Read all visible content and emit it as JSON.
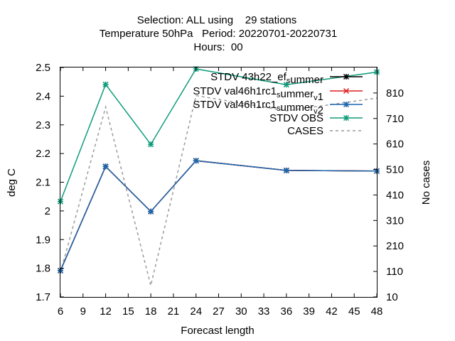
{
  "chart_data": {
    "type": "line",
    "title_lines": [
      "Selection: ALL using    29 stations",
      "Temperature 50hPa   Period: 20220701-20220731",
      "Hours:  00"
    ],
    "xlabel": "Forecast length",
    "ylabel": "deg C",
    "y2label": "No cases",
    "xlim": [
      6,
      48
    ],
    "ylim": [
      1.7,
      2.5
    ],
    "y2lim": [
      10,
      910
    ],
    "x_ticks": [
      6,
      9,
      12,
      15,
      18,
      21,
      24,
      27,
      30,
      33,
      36,
      39,
      42,
      45,
      48
    ],
    "y_ticks": [
      1.7,
      1.8,
      1.9,
      2,
      2.1,
      2.2,
      2.3,
      2.4,
      2.5
    ],
    "y_tick_labels": [
      "1.7",
      "1.8",
      "1.9",
      "2",
      "2.1",
      "2.2",
      "2.3",
      "2.4",
      "2.5"
    ],
    "y2_ticks": [
      10,
      110,
      210,
      310,
      410,
      510,
      610,
      710,
      810
    ],
    "y2_tick_labels": [
      "10",
      "110",
      "210",
      "310",
      "410",
      "510",
      "610",
      "710",
      "810"
    ],
    "grid": false,
    "legend_position": "top-right",
    "series": [
      {
        "name": "STDV 43h22_ef_summer",
        "legend_parts": [
          [
            "STDV 43h22_ef",
            0
          ],
          [
            "s",
            1
          ],
          [
            "ummer",
            0
          ]
        ],
        "axis": "y",
        "color": "#000000",
        "marker": "star",
        "dash": false,
        "x": [
          6,
          12,
          18,
          24,
          36,
          48
        ],
        "y": [
          1.792,
          2.155,
          1.998,
          2.175,
          2.141,
          2.139
        ]
      },
      {
        "name": "STDV val46h1rc1_summer_v1",
        "legend_parts": [
          [
            "STDV val46h1rc1",
            0
          ],
          [
            "s",
            1
          ],
          [
            "ummer",
            0
          ],
          [
            "v",
            1
          ],
          [
            "1",
            0
          ]
        ],
        "axis": "y",
        "color": "#dd1e1e",
        "marker": "x",
        "dash": false,
        "x": [
          6,
          12,
          18,
          24,
          36,
          48
        ],
        "y": [
          1.792,
          2.155,
          1.998,
          2.175,
          2.141,
          2.139
        ]
      },
      {
        "name": "STDV val46h1rc1_summer_v2",
        "legend_parts": [
          [
            "STDV val46h1rc1",
            0
          ],
          [
            "s",
            1
          ],
          [
            "ummer",
            0
          ],
          [
            "v",
            1
          ],
          [
            "2",
            0
          ]
        ],
        "axis": "y",
        "color": "#1a66ad",
        "marker": "star",
        "dash": false,
        "x": [
          6,
          12,
          18,
          24,
          36,
          48
        ],
        "y": [
          1.792,
          2.155,
          1.998,
          2.175,
          2.141,
          2.139
        ]
      },
      {
        "name": "STDV OBS",
        "legend_parts": [
          [
            "STDV OBS",
            0
          ]
        ],
        "axis": "y",
        "color": "#0f9b7a",
        "marker": "star",
        "dash": false,
        "x": [
          6,
          12,
          18,
          24,
          36,
          48
        ],
        "y": [
          2.033,
          2.441,
          2.232,
          2.495,
          2.44,
          2.484
        ]
      },
      {
        "name": "CASES",
        "legend_parts": [
          [
            "CASES",
            0
          ]
        ],
        "axis": "y2",
        "color": "#9a9a9a",
        "marker": "none",
        "dash": true,
        "x": [
          6,
          12,
          18,
          24,
          36,
          48
        ],
        "y": [
          105,
          755,
          55,
          800,
          740,
          790
        ]
      }
    ]
  }
}
